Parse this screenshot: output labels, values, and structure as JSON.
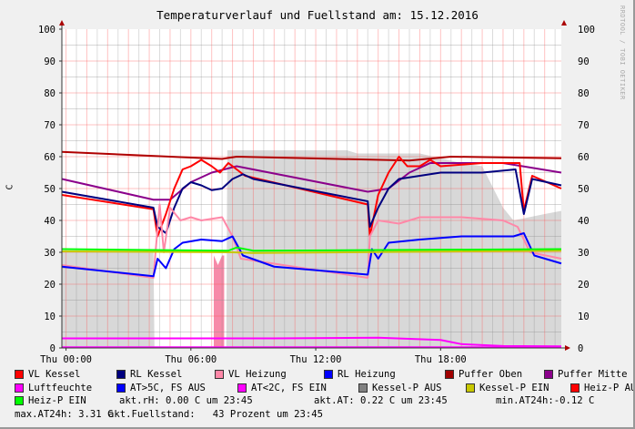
{
  "chart_data": {
    "type": "line",
    "title": "Temperaturverlauf und Fuellstand am: 15.12.2016",
    "ylabel": "C",
    "ylim": [
      0,
      100
    ],
    "yticks": [
      0,
      10,
      20,
      30,
      40,
      50,
      60,
      70,
      80,
      90,
      100
    ],
    "xlim_hours": [
      -0.2,
      23.8
    ],
    "xticks": [
      {
        "h": 0,
        "label": "Thu 00:00"
      },
      {
        "h": 6,
        "label": "Thu 06:00"
      },
      {
        "h": 12,
        "label": "Thu 12:00"
      },
      {
        "h": 18,
        "label": "Thu 18:00"
      }
    ],
    "grid": true,
    "watermark": "RRDTOOL / TOBI OETIKER",
    "areas": [
      {
        "name": "Kessel-P AUS",
        "color": "#d8d8d8",
        "points": [
          [
            -0.2,
            30.5
          ],
          [
            4.2,
            30.5
          ],
          [
            4.25,
            0
          ],
          [
            7.7,
            0
          ],
          [
            7.75,
            62
          ],
          [
            13.5,
            62
          ],
          [
            14,
            61
          ],
          [
            17,
            61
          ],
          [
            19,
            58
          ],
          [
            20,
            57
          ],
          [
            21,
            44
          ],
          [
            21.5,
            40
          ],
          [
            23,
            42
          ],
          [
            23.8,
            43
          ]
        ]
      },
      {
        "name": "Heiz-P AUS",
        "color": "#f78aa8",
        "points": [
          [
            7.1,
            0
          ],
          [
            7.1,
            29
          ],
          [
            7.3,
            26
          ],
          [
            7.5,
            29
          ],
          [
            7.6,
            29
          ],
          [
            7.6,
            0
          ]
        ]
      }
    ],
    "series": [
      {
        "name": "Puffer Oben",
        "color": "#b00000",
        "points": [
          [
            -0.2,
            61.5
          ],
          [
            7.5,
            59.3
          ],
          [
            8.2,
            60
          ],
          [
            16.5,
            58.8
          ],
          [
            18.5,
            60
          ],
          [
            23.8,
            59.5
          ]
        ]
      },
      {
        "name": "Puffer Mitte",
        "color": "#8b008b",
        "points": [
          [
            -0.2,
            53
          ],
          [
            4.2,
            46.5
          ],
          [
            5,
            46.5
          ],
          [
            6,
            52
          ],
          [
            7,
            55
          ],
          [
            8.2,
            57
          ],
          [
            14.5,
            49
          ],
          [
            15.5,
            50
          ],
          [
            16.5,
            55
          ],
          [
            17.5,
            58
          ],
          [
            21,
            58
          ],
          [
            23.8,
            55
          ]
        ]
      },
      {
        "name": "VL Kessel",
        "color": "#ff0000",
        "points": [
          [
            -0.2,
            48
          ],
          [
            4.2,
            43.5
          ],
          [
            4.4,
            35
          ],
          [
            4.8,
            42
          ],
          [
            5.2,
            50
          ],
          [
            5.6,
            56
          ],
          [
            6,
            57
          ],
          [
            6.5,
            59
          ],
          [
            7,
            57
          ],
          [
            7.4,
            55
          ],
          [
            7.8,
            58
          ],
          [
            8.2,
            56
          ],
          [
            8.6,
            54
          ],
          [
            14.5,
            45
          ],
          [
            14.6,
            35
          ],
          [
            15,
            48
          ],
          [
            15.5,
            55
          ],
          [
            16,
            60
          ],
          [
            16.4,
            57
          ],
          [
            17,
            57
          ],
          [
            17.5,
            59
          ],
          [
            18,
            57
          ],
          [
            20,
            58
          ],
          [
            21.8,
            58
          ],
          [
            22,
            43
          ],
          [
            22.4,
            54
          ],
          [
            23.8,
            50
          ]
        ]
      },
      {
        "name": "RL Kessel",
        "color": "#00007f",
        "points": [
          [
            -0.2,
            49
          ],
          [
            4.2,
            44
          ],
          [
            4.4,
            38
          ],
          [
            4.8,
            36
          ],
          [
            5.2,
            44
          ],
          [
            5.6,
            50
          ],
          [
            6,
            52
          ],
          [
            6.5,
            51
          ],
          [
            7,
            49.5
          ],
          [
            7.5,
            50
          ],
          [
            8,
            53
          ],
          [
            8.5,
            54.5
          ],
          [
            9,
            53
          ],
          [
            14.5,
            46
          ],
          [
            14.6,
            38
          ],
          [
            15,
            44
          ],
          [
            15.5,
            50
          ],
          [
            16,
            53
          ],
          [
            17,
            54
          ],
          [
            18,
            55
          ],
          [
            20,
            55
          ],
          [
            21.6,
            56
          ],
          [
            22,
            42
          ],
          [
            22.4,
            53
          ],
          [
            23.8,
            51
          ]
        ]
      },
      {
        "name": "VL Heizung",
        "color": "#ff88a8",
        "points": [
          [
            -0.2,
            26
          ],
          [
            4.2,
            22
          ],
          [
            4.3,
            30
          ],
          [
            4.5,
            45
          ],
          [
            4.7,
            30
          ],
          [
            5,
            44
          ],
          [
            5.5,
            40
          ],
          [
            6,
            41
          ],
          [
            6.5,
            40
          ],
          [
            7.5,
            41
          ],
          [
            8,
            35
          ],
          [
            8.4,
            28
          ],
          [
            14.5,
            22
          ],
          [
            14.6,
            35
          ],
          [
            15,
            40
          ],
          [
            16,
            39
          ],
          [
            17,
            41
          ],
          [
            19,
            41
          ],
          [
            21,
            40
          ],
          [
            21.7,
            38
          ],
          [
            22.3,
            30
          ],
          [
            23.8,
            28
          ]
        ]
      },
      {
        "name": "RL Heizung",
        "color": "#0000ff",
        "points": [
          [
            -0.2,
            25.5
          ],
          [
            4.2,
            22.5
          ],
          [
            4.4,
            28
          ],
          [
            4.8,
            25
          ],
          [
            5.2,
            31
          ],
          [
            5.6,
            33
          ],
          [
            6.5,
            34
          ],
          [
            7.5,
            33.5
          ],
          [
            8,
            35
          ],
          [
            8.5,
            29
          ],
          [
            10,
            25.5
          ],
          [
            14.5,
            23
          ],
          [
            14.7,
            31
          ],
          [
            15,
            28
          ],
          [
            15.5,
            33
          ],
          [
            17,
            34
          ],
          [
            19,
            35
          ],
          [
            21.5,
            35
          ],
          [
            22,
            36
          ],
          [
            22.5,
            29
          ],
          [
            23.8,
            26.5
          ]
        ]
      },
      {
        "name": "Kessel-P EIN",
        "color": "#c8c800",
        "points": [
          [
            -0.2,
            30.3
          ],
          [
            8,
            30
          ],
          [
            9,
            29.8
          ],
          [
            23.8,
            30.5
          ]
        ]
      },
      {
        "name": "Heiz-P EIN",
        "color": "#00ff00",
        "points": [
          [
            -0.2,
            31
          ],
          [
            7.8,
            30.5
          ],
          [
            8.2,
            31.5
          ],
          [
            9,
            30.5
          ],
          [
            23.8,
            31
          ]
        ]
      },
      {
        "name": "Luftfeuchte",
        "color": "#ff00ff",
        "points": [
          [
            -0.2,
            3
          ],
          [
            10,
            3
          ],
          [
            15,
            3.2
          ],
          [
            18,
            2.5
          ],
          [
            19,
            1.2
          ],
          [
            21,
            0.6
          ],
          [
            23.8,
            0.5
          ]
        ]
      },
      {
        "name": "AT<2C, FS EIN",
        "color": "#ff00ff",
        "points": [
          [
            -0.2,
            0.2
          ],
          [
            23.8,
            0.2
          ]
        ]
      }
    ]
  },
  "legend": [
    [
      {
        "label": "VL Kessel",
        "color": "#ff0000"
      },
      {
        "label": "RL Kessel",
        "color": "#00007f"
      },
      {
        "label": "VL Heizung",
        "color": "#ff88a8"
      },
      {
        "label": "RL Heizung",
        "color": "#0000ff"
      },
      {
        "label": "Puffer Oben",
        "color": "#a00000"
      },
      {
        "label": "Puffer Mitte",
        "color": "#8b008b"
      }
    ],
    [
      {
        "label": "Luftfeuchte",
        "color": "#ff00ff"
      },
      {
        "label": "AT>5C, FS AUS",
        "color": "#0000ff"
      },
      {
        "label": "AT<2C, FS EIN",
        "color": "#ff00ff"
      },
      {
        "label": "Kessel-P AUS",
        "color": "#808080"
      },
      {
        "label": "Kessel-P EIN",
        "color": "#c8c800"
      },
      {
        "label": "Heiz-P AUS",
        "color": "#ff0000"
      }
    ]
  ],
  "legend_row3": {
    "label": "Heiz-P EIN",
    "color": "#00ff00",
    "rh": "akt.rH: 0.00 C um 23:45",
    "at": "akt.AT: 0.22 C um 23:45",
    "min": "min.AT24h:-0.12 C"
  },
  "legend_row4": {
    "max": "max.AT24h: 3.31 C",
    "fuell": "akt.Fuellstand:   43 Prozent um 23:45"
  }
}
